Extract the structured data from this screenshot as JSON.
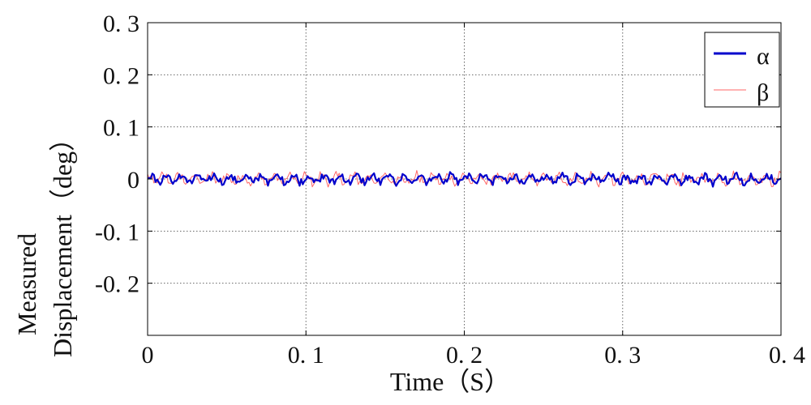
{
  "chart_data": {
    "type": "line",
    "title": "",
    "xlabel": "Time（S）",
    "ylabel_lines": [
      "Measured",
      "Displacement（deg）"
    ],
    "xlim": [
      0,
      0.4
    ],
    "ylim": [
      -0.3,
      0.3
    ],
    "x_ticks": [
      0,
      0.1,
      0.2,
      0.3,
      0.4
    ],
    "x_tick_labels": [
      "0",
      "0. 1",
      "0. 2",
      "0. 3",
      "0. 4"
    ],
    "y_ticks": [
      0.3,
      0.2,
      0.1,
      0,
      -0.1,
      -0.2
    ],
    "y_tick_labels": [
      "0. 3",
      "0. 2",
      "0. 1",
      "0",
      "-0. 1",
      "-0. 2"
    ],
    "grid": true,
    "legend_position": "top-right",
    "series": [
      {
        "name": "α",
        "color": "#0000cc",
        "line_width": "thick",
        "x_range": [
          0,
          0.4
        ],
        "mean": 0.0,
        "amplitude": 0.012,
        "dominant_frequency_hz": 100,
        "samples": 400
      },
      {
        "name": "β",
        "color": "#ff6666",
        "line_width": "thin",
        "x_range": [
          0,
          0.4
        ],
        "mean": 0.0,
        "amplitude": 0.014,
        "dominant_frequency_hz": 100,
        "samples": 400
      }
    ]
  }
}
